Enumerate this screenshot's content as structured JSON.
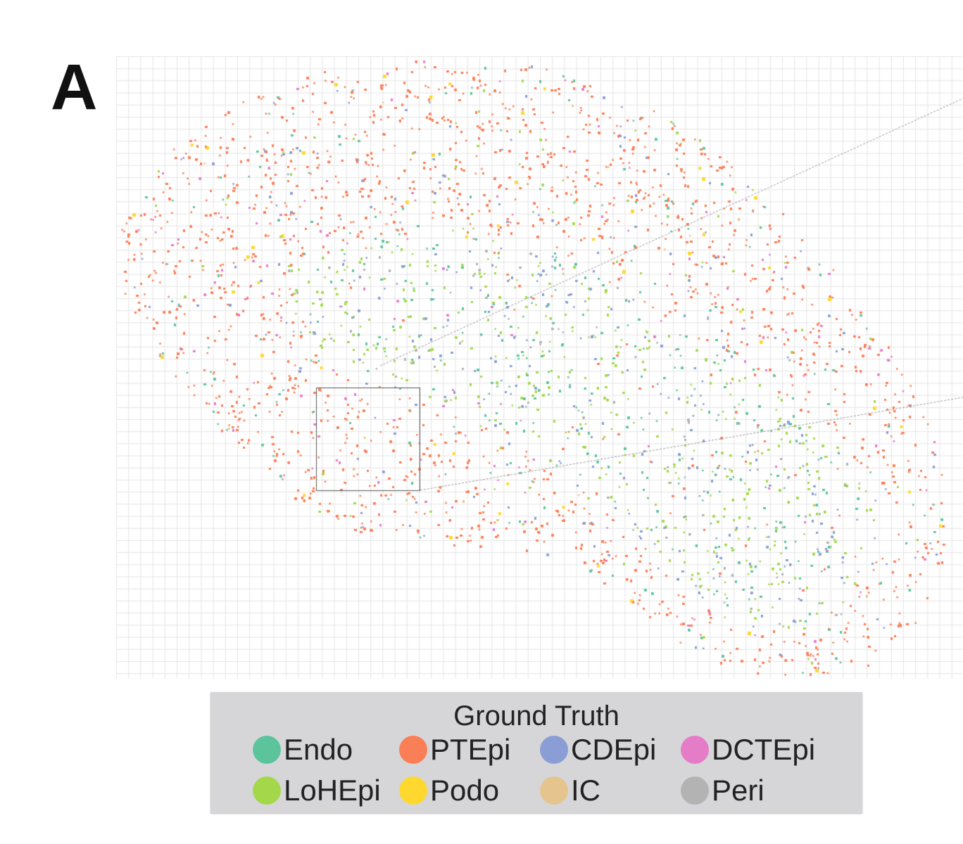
{
  "panel_label": "A",
  "chart_data": {
    "type": "scatter",
    "title": "",
    "xlabel": "",
    "ylabel": "",
    "grid": true,
    "legend_position": "bottom",
    "legend": {
      "title": "Ground Truth",
      "entries": [
        {
          "label": "Endo",
          "color": "#5cc49c"
        },
        {
          "label": "PTEpi",
          "color": "#fb7f56"
        },
        {
          "label": "CDEpi",
          "color": "#8a9dd4"
        },
        {
          "label": "DCTEpi",
          "color": "#e57cc8"
        },
        {
          "label": "LoHEpi",
          "color": "#a4d84a"
        },
        {
          "label": "Podo",
          "color": "#fed82f"
        },
        {
          "label": "IC",
          "color": "#e6c48e"
        },
        {
          "label": "Peri",
          "color": "#b3b3b3"
        }
      ]
    }
  }
}
